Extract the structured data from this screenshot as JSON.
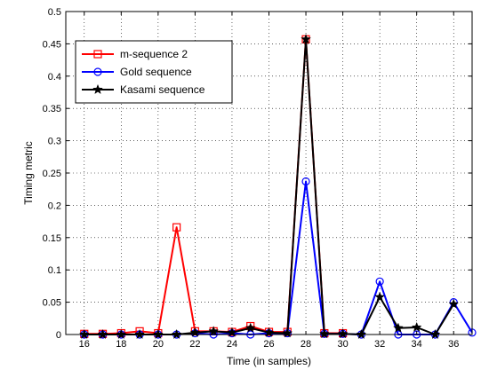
{
  "chart_data": {
    "type": "line",
    "title": "",
    "xlabel": "Time (in samples)",
    "ylabel": "Timing metric",
    "xlim": [
      15,
      37
    ],
    "ylim": [
      0,
      0.5
    ],
    "xticks": [
      16,
      18,
      20,
      22,
      24,
      26,
      28,
      30,
      32,
      34,
      36
    ],
    "xtick_labels": [
      "16",
      "18",
      "20",
      "22",
      "24",
      "26",
      "28",
      "30",
      "32",
      "34",
      "36"
    ],
    "yticks": [
      0,
      0.05,
      0.1,
      0.15,
      0.2,
      0.25,
      0.3,
      0.35,
      0.4,
      0.45,
      0.5
    ],
    "ytick_labels": [
      "0",
      "0.05",
      "0.1",
      "0.15",
      "0.2",
      "0.25",
      "0.3",
      "0.35",
      "0.4",
      "0.45",
      "0.5"
    ],
    "grid": true,
    "legend_position": "top-left",
    "series": [
      {
        "name": "m-sequence 2",
        "color": "#ff0000",
        "marker": "square",
        "x": [
          16,
          17,
          18,
          19,
          20,
          21,
          22,
          23,
          24,
          25,
          26,
          27,
          28,
          29,
          30
        ],
        "y": [
          0.001,
          0.001,
          0.002,
          0.005,
          0.002,
          0.166,
          0.005,
          0.005,
          0.004,
          0.013,
          0.004,
          0.004,
          0.457,
          0.002,
          0.002
        ]
      },
      {
        "name": "Gold sequence",
        "color": "#0000ff",
        "marker": "circle",
        "x": [
          16,
          17,
          18,
          19,
          20,
          21,
          22,
          23,
          24,
          25,
          26,
          27,
          28,
          29,
          30,
          31,
          32,
          33,
          34,
          35,
          36,
          37
        ],
        "y": [
          0.0,
          0.0,
          0.0,
          0.0,
          0.0,
          0.0,
          0.002,
          0.0,
          0.002,
          0.0,
          0.002,
          0.002,
          0.237,
          0.001,
          0.001,
          0.0,
          0.082,
          0.0,
          0.0,
          0.0,
          0.05,
          0.003
        ]
      },
      {
        "name": "Kasami sequence",
        "color": "#000000",
        "marker": "star",
        "x": [
          16,
          17,
          18,
          19,
          20,
          21,
          22,
          23,
          24,
          25,
          26,
          27,
          28,
          29,
          30,
          31,
          32,
          33,
          34,
          35,
          36
        ],
        "y": [
          0.0,
          0.0,
          0.0,
          0.0,
          0.0,
          0.0,
          0.003,
          0.005,
          0.003,
          0.01,
          0.003,
          0.002,
          0.457,
          0.001,
          0.001,
          0.0,
          0.058,
          0.01,
          0.011,
          0.0,
          0.047
        ]
      }
    ]
  }
}
